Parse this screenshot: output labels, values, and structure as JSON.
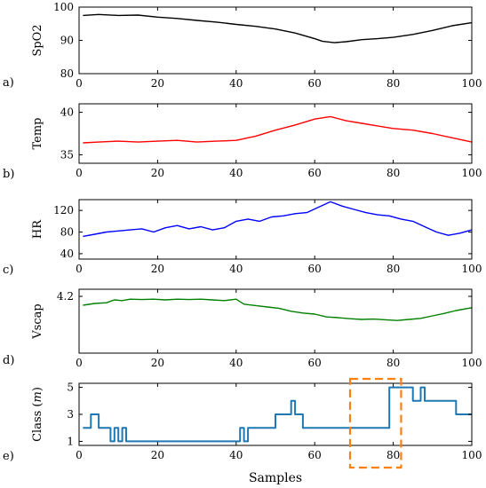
{
  "chart_data": [
    {
      "type": "line",
      "panel_label": "a)",
      "ylabel": "SpO2",
      "xlim": [
        0,
        100
      ],
      "ylim": [
        80,
        100
      ],
      "yticks": [
        80,
        90,
        100
      ],
      "xticks": [
        0,
        20,
        40,
        60,
        80,
        100
      ],
      "grid": false,
      "series": [
        {
          "color": "#000000",
          "x": [
            1,
            5,
            10,
            15,
            20,
            25,
            30,
            35,
            40,
            45,
            50,
            55,
            60,
            62,
            65,
            68,
            72,
            76,
            80,
            85,
            90,
            95,
            100
          ],
          "y": [
            97.5,
            97.8,
            97.5,
            97.6,
            97.0,
            96.6,
            96.0,
            95.5,
            94.8,
            94.2,
            93.4,
            92.2,
            90.5,
            89.7,
            89.3,
            89.6,
            90.2,
            90.5,
            90.9,
            91.8,
            93.0,
            94.4,
            95.3
          ]
        }
      ]
    },
    {
      "type": "line",
      "panel_label": "b)",
      "ylabel": "Temp",
      "xlim": [
        0,
        100
      ],
      "ylim": [
        34,
        41
      ],
      "yticks": [
        35,
        40
      ],
      "xticks": [
        0,
        20,
        40,
        60,
        80,
        100
      ],
      "grid": false,
      "series": [
        {
          "color": "#ff0000",
          "x": [
            1,
            5,
            10,
            15,
            20,
            25,
            30,
            35,
            40,
            45,
            50,
            55,
            60,
            64,
            68,
            72,
            76,
            80,
            85,
            90,
            95,
            100
          ],
          "y": [
            36.4,
            36.5,
            36.6,
            36.5,
            36.6,
            36.7,
            36.5,
            36.6,
            36.7,
            37.2,
            37.9,
            38.5,
            39.2,
            39.5,
            39.0,
            38.7,
            38.4,
            38.1,
            37.9,
            37.5,
            37.0,
            36.5
          ]
        }
      ]
    },
    {
      "type": "line",
      "panel_label": "c)",
      "ylabel": "HR",
      "xlim": [
        0,
        100
      ],
      "ylim": [
        30,
        140
      ],
      "yticks": [
        40,
        80,
        120
      ],
      "xticks": [
        0,
        20,
        40,
        60,
        80,
        100
      ],
      "grid": false,
      "series": [
        {
          "color": "#0000ff",
          "x": [
            1,
            4,
            7,
            10,
            13,
            16,
            19,
            22,
            25,
            28,
            31,
            34,
            37,
            40,
            43,
            46,
            49,
            52,
            55,
            58,
            61,
            64,
            67,
            70,
            73,
            76,
            79,
            82,
            85,
            88,
            91,
            94,
            97,
            100
          ],
          "y": [
            72,
            76,
            80,
            82,
            84,
            86,
            80,
            88,
            92,
            86,
            90,
            84,
            88,
            100,
            104,
            100,
            108,
            110,
            114,
            116,
            126,
            136,
            128,
            122,
            116,
            112,
            110,
            104,
            100,
            90,
            80,
            74,
            78,
            84
          ]
        }
      ]
    },
    {
      "type": "line",
      "panel_label": "d)",
      "ylabel": "Vscap",
      "xlim": [
        0,
        100
      ],
      "ylim": [
        2.6,
        4.4
      ],
      "yticks": [
        4.2
      ],
      "xticks": [
        0,
        20,
        40,
        60,
        80,
        100
      ],
      "grid": false,
      "series": [
        {
          "color": "#008000",
          "x": [
            1,
            4,
            7,
            9,
            11,
            13,
            16,
            19,
            22,
            25,
            28,
            31,
            34,
            37,
            40,
            42,
            45,
            48,
            51,
            54,
            57,
            60,
            63,
            66,
            69,
            72,
            75,
            78,
            81,
            84,
            87,
            90,
            93,
            96,
            100
          ],
          "y": [
            3.95,
            4.0,
            4.02,
            4.1,
            4.08,
            4.12,
            4.11,
            4.12,
            4.1,
            4.12,
            4.11,
            4.12,
            4.1,
            4.08,
            4.12,
            3.98,
            3.94,
            3.9,
            3.86,
            3.78,
            3.73,
            3.7,
            3.62,
            3.6,
            3.57,
            3.55,
            3.56,
            3.54,
            3.52,
            3.55,
            3.58,
            3.65,
            3.72,
            3.8,
            3.88
          ]
        }
      ]
    },
    {
      "type": "line",
      "panel_label": "e)",
      "ylabel": "Class (m)",
      "xlabel": "Samples",
      "xlim": [
        0,
        100
      ],
      "ylim": [
        0.7,
        5.3
      ],
      "yticks": [
        1,
        3,
        5
      ],
      "xticks": [
        0,
        20,
        40,
        60,
        80,
        100
      ],
      "grid": false,
      "step": true,
      "series": [
        {
          "color": "#1f77b4",
          "x": [
            1,
            3,
            5,
            7,
            8,
            9,
            10,
            11,
            12,
            13,
            41,
            42,
            43,
            44,
            47,
            50,
            54,
            55,
            57,
            73,
            79,
            84,
            85,
            87,
            88,
            96,
            100
          ],
          "y": [
            2,
            3,
            2,
            2,
            1,
            2,
            1,
            2,
            1,
            1,
            2,
            1,
            2,
            2,
            2,
            3,
            4,
            3,
            2,
            2,
            5,
            5,
            4,
            5,
            4,
            3,
            3
          ]
        }
      ],
      "annotation": {
        "kind": "dashed-rectangle",
        "color": "#ff7f0e",
        "x_range": [
          69,
          82
        ]
      }
    }
  ]
}
